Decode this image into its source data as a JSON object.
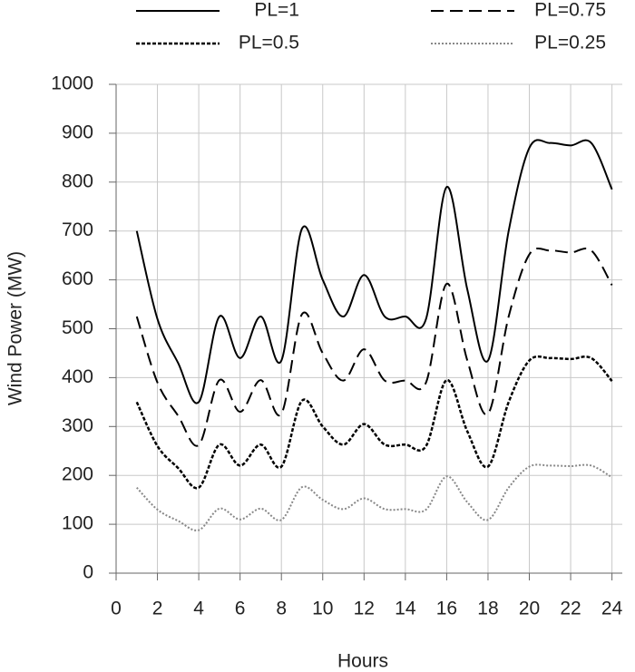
{
  "chart_data": {
    "type": "line",
    "x_label": "Hours",
    "y_label": "Wind Power (MW)",
    "x": [
      1,
      2,
      3,
      4,
      5,
      6,
      7,
      8,
      9,
      10,
      11,
      12,
      13,
      14,
      15,
      16,
      17,
      18,
      19,
      20,
      21,
      22,
      23,
      24
    ],
    "series": [
      {
        "name": "PL=1",
        "color": "#000000",
        "dash": "solid",
        "values": [
          700,
          520,
          430,
          350,
          525,
          440,
          525,
          435,
          705,
          600,
          525,
          610,
          525,
          525,
          520,
          790,
          580,
          435,
          700,
          870,
          880,
          875,
          880,
          785
        ]
      },
      {
        "name": "PL=0.75",
        "color": "#000000",
        "dash": "dashed",
        "values": [
          525,
          390,
          322,
          262,
          395,
          330,
          395,
          326,
          530,
          450,
          394,
          458,
          394,
          394,
          390,
          592,
          435,
          326,
          525,
          652,
          660,
          656,
          660,
          589
        ]
      },
      {
        "name": "PL=0.5",
        "color": "#000000",
        "dash": "dotted",
        "values": [
          350,
          260,
          215,
          175,
          263,
          220,
          263,
          218,
          353,
          300,
          263,
          305,
          263,
          263,
          260,
          395,
          290,
          218,
          350,
          435,
          440,
          438,
          440,
          393
        ]
      },
      {
        "name": "PL=0.25",
        "color": "#888888",
        "dash": "fine-dotted",
        "values": [
          175,
          130,
          107,
          88,
          132,
          110,
          132,
          109,
          176,
          150,
          131,
          153,
          131,
          131,
          130,
          198,
          145,
          109,
          175,
          218,
          220,
          219,
          220,
          196
        ]
      }
    ],
    "xlim": [
      0,
      24.5
    ],
    "xticks": [
      0,
      2,
      4,
      6,
      8,
      10,
      12,
      14,
      16,
      18,
      20,
      22,
      24
    ],
    "ylim": [
      0,
      1000
    ],
    "yticks": [
      0,
      100,
      200,
      300,
      400,
      500,
      600,
      700,
      800,
      900,
      1000
    ],
    "grid": true,
    "legend": "top"
  }
}
